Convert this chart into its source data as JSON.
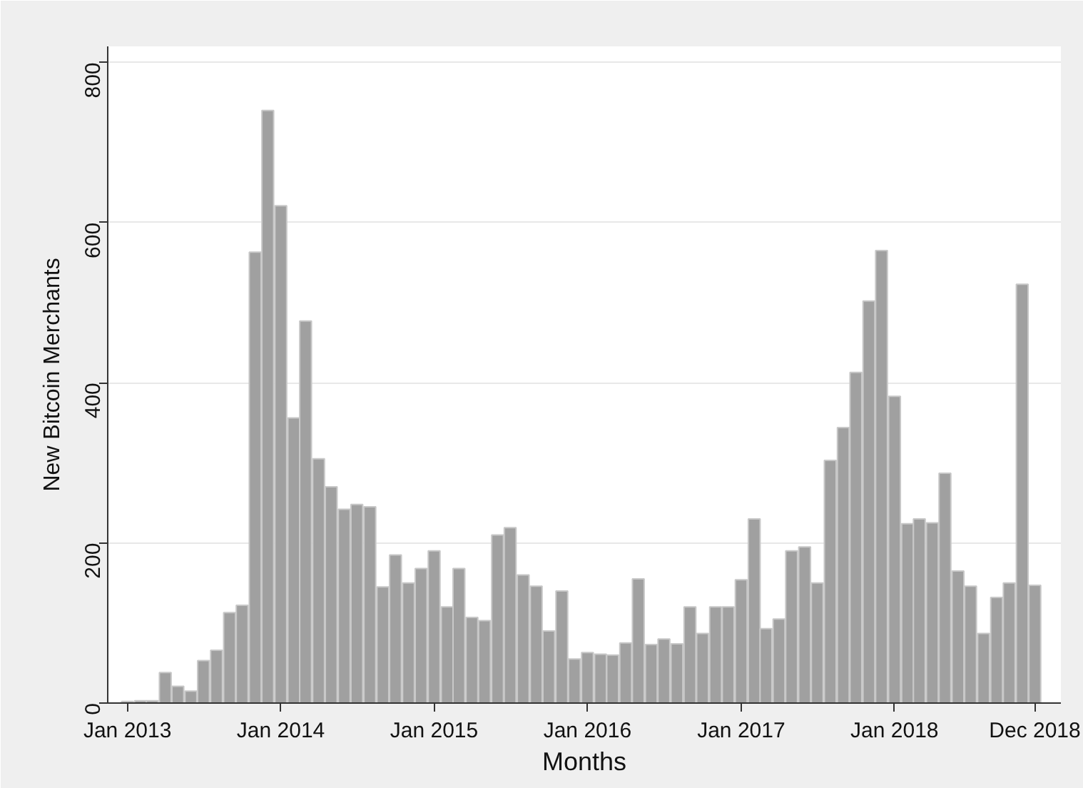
{
  "chart_data": {
    "type": "bar",
    "xlabel": "Months",
    "ylabel": "New Bitcoin Merchants",
    "x": [
      "2013-01",
      "2013-02",
      "2013-03",
      "2013-04",
      "2013-05",
      "2013-06",
      "2013-07",
      "2013-08",
      "2013-09",
      "2013-10",
      "2013-11",
      "2013-12",
      "2014-01",
      "2014-02",
      "2014-03",
      "2014-04",
      "2014-05",
      "2014-06",
      "2014-07",
      "2014-08",
      "2014-09",
      "2014-10",
      "2014-11",
      "2014-12",
      "2015-01",
      "2015-02",
      "2015-03",
      "2015-04",
      "2015-05",
      "2015-06",
      "2015-07",
      "2015-08",
      "2015-09",
      "2015-10",
      "2015-11",
      "2015-12",
      "2016-01",
      "2016-02",
      "2016-03",
      "2016-04",
      "2016-05",
      "2016-06",
      "2016-07",
      "2016-08",
      "2016-09",
      "2016-10",
      "2016-11",
      "2016-12",
      "2017-01",
      "2017-02",
      "2017-03",
      "2017-04",
      "2017-05",
      "2017-06",
      "2017-07",
      "2017-08",
      "2017-09",
      "2017-10",
      "2017-11",
      "2017-12",
      "2018-01",
      "2018-02",
      "2018-03",
      "2018-04",
      "2018-05",
      "2018-06",
      "2018-07",
      "2018-08",
      "2018-09",
      "2018-10",
      "2018-11",
      "2018-12"
    ],
    "values": [
      2,
      3,
      3,
      38,
      21,
      15,
      53,
      66,
      113,
      122,
      563,
      740,
      621,
      356,
      477,
      305,
      270,
      242,
      248,
      245,
      145,
      185,
      150,
      168,
      190,
      120,
      168,
      107,
      103,
      210,
      219,
      160,
      146,
      90,
      140,
      55,
      63,
      61,
      60,
      75,
      155,
      73,
      80,
      74,
      120,
      87,
      120,
      120,
      154,
      230,
      93,
      105,
      190,
      195,
      150,
      303,
      344,
      413,
      502,
      565,
      383,
      224,
      230,
      225,
      287,
      165,
      146,
      87,
      132,
      150,
      523,
      147
    ],
    "color": "#a0a0a0",
    "xlim": [
      "2012-11-15",
      "2019-02-01"
    ],
    "xticks": [
      {
        "value": "2013-01",
        "label": "Jan 2013"
      },
      {
        "value": "2014-01",
        "label": "Jan 2014"
      },
      {
        "value": "2015-01",
        "label": "Jan 2015"
      },
      {
        "value": "2016-01",
        "label": "Jan 2016"
      },
      {
        "value": "2017-01",
        "label": "Jan 2017"
      },
      {
        "value": "2018-01",
        "label": "Jan 2018"
      },
      {
        "value": "2018-12",
        "label": "Dec 2018"
      }
    ],
    "ylim": [
      0,
      820
    ],
    "yticks": [
      0,
      200,
      400,
      600,
      800
    ],
    "grid": "y"
  }
}
